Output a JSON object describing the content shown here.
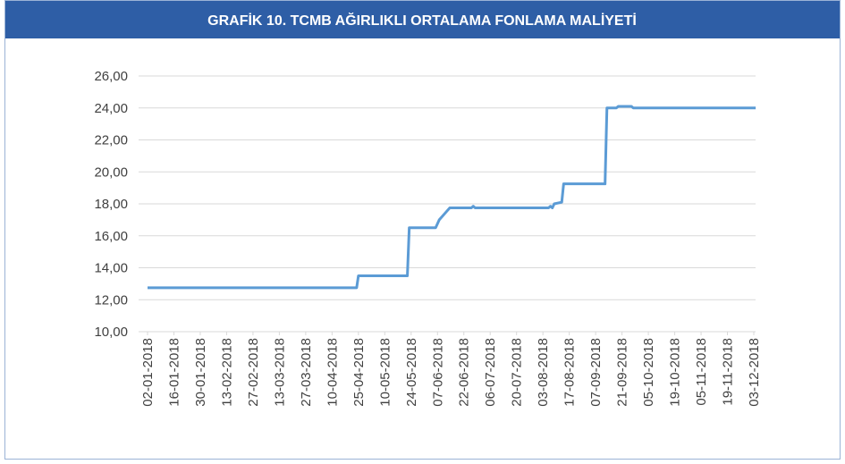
{
  "chart_data": {
    "type": "line",
    "title": "GRAFİK 10. TCMB AĞIRLIKLI ORTALAMA FONLAMA MALİYETİ",
    "series": [
      {
        "name": "TCMB Ağırlıklı Ortalama Fonlama Maliyeti",
        "color": "#5b9bd5",
        "x": [
          "2018-01-02",
          "2018-04-24",
          "2018-04-25",
          "2018-05-22",
          "2018-05-23",
          "2018-06-06",
          "2018-06-08",
          "2018-06-12",
          "2018-06-14",
          "2018-06-26",
          "2018-06-27",
          "2018-06-28",
          "2018-08-06",
          "2018-08-07",
          "2018-08-08",
          "2018-08-09",
          "2018-08-13",
          "2018-08-14",
          "2018-09-12",
          "2018-09-13",
          "2018-09-18",
          "2018-09-19",
          "2018-09-26",
          "2018-09-27",
          "2018-12-04"
        ],
        "values": [
          12.75,
          12.75,
          13.5,
          13.5,
          16.5,
          16.5,
          17.0,
          17.5,
          17.75,
          17.75,
          17.85,
          17.75,
          17.75,
          17.85,
          17.75,
          18.0,
          18.1,
          19.25,
          19.25,
          24.0,
          24.0,
          24.1,
          24.1,
          24.0,
          24.0
        ]
      }
    ],
    "ylim": [
      10,
      26
    ],
    "yticks": [
      {
        "value": 10,
        "label": "10,00"
      },
      {
        "value": 12,
        "label": "12,00"
      },
      {
        "value": 14,
        "label": "14,00"
      },
      {
        "value": 16,
        "label": "16,00"
      },
      {
        "value": 18,
        "label": "18,00"
      },
      {
        "value": 20,
        "label": "20,00"
      },
      {
        "value": 22,
        "label": "22,00"
      },
      {
        "value": 24,
        "label": "24,00"
      },
      {
        "value": 26,
        "label": "26,00"
      }
    ],
    "xticks": [
      {
        "value": "2018-01-02",
        "label": "02-01-2018"
      },
      {
        "value": "2018-01-16",
        "label": "16-01-2018"
      },
      {
        "value": "2018-01-30",
        "label": "30-01-2018"
      },
      {
        "value": "2018-02-13",
        "label": "13-02-2018"
      },
      {
        "value": "2018-02-27",
        "label": "27-02-2018"
      },
      {
        "value": "2018-03-13",
        "label": "13-03-2018"
      },
      {
        "value": "2018-03-27",
        "label": "27-03-2018"
      },
      {
        "value": "2018-04-10",
        "label": "10-04-2018"
      },
      {
        "value": "2018-04-25",
        "label": "25-04-2018"
      },
      {
        "value": "2018-05-10",
        "label": "10-05-2018"
      },
      {
        "value": "2018-05-24",
        "label": "24-05-2018"
      },
      {
        "value": "2018-06-07",
        "label": "07-06-2018"
      },
      {
        "value": "2018-06-22",
        "label": "22-06-2018"
      },
      {
        "value": "2018-07-06",
        "label": "06-07-2018"
      },
      {
        "value": "2018-07-20",
        "label": "20-07-2018"
      },
      {
        "value": "2018-08-03",
        "label": "03-08-2018"
      },
      {
        "value": "2018-08-17",
        "label": "17-08-2018"
      },
      {
        "value": "2018-09-07",
        "label": "07-09-2018"
      },
      {
        "value": "2018-09-21",
        "label": "21-09-2018"
      },
      {
        "value": "2018-10-05",
        "label": "05-10-2018"
      },
      {
        "value": "2018-10-19",
        "label": "19-10-2018"
      },
      {
        "value": "2018-11-05",
        "label": "05-11-2018"
      },
      {
        "value": "2018-11-19",
        "label": "19-11-2018"
      },
      {
        "value": "2018-12-03",
        "label": "03-12-2018"
      }
    ],
    "grid": true
  }
}
